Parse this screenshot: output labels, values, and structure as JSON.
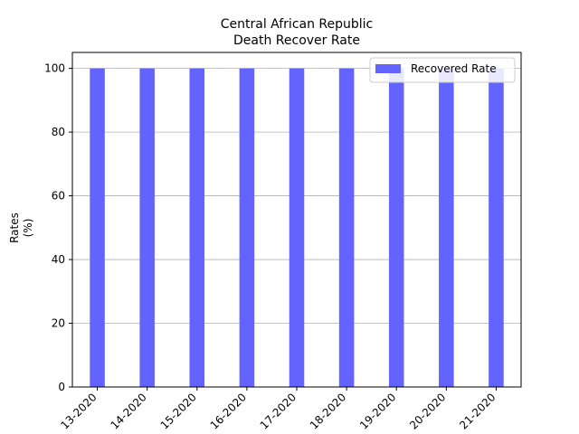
{
  "chart_data": {
    "type": "bar",
    "title_lines": [
      "Central African Republic",
      "Death Recover Rate"
    ],
    "ylabel_lines": [
      "Rates",
      "(%)"
    ],
    "xlabel": "",
    "categories": [
      "13-2020",
      "14-2020",
      "15-2020",
      "16-2020",
      "17-2020",
      "18-2020",
      "19-2020",
      "20-2020",
      "21-2020"
    ],
    "series": [
      {
        "name": "Recovered Rate",
        "values": [
          100,
          100,
          100,
          100,
          100,
          100,
          100,
          100,
          100
        ],
        "color": "#6363ff"
      }
    ],
    "ylim": [
      0,
      105
    ],
    "yticks": [
      0,
      20,
      40,
      60,
      80,
      100
    ],
    "grid": "horizontal",
    "legend_position": "top-right"
  }
}
